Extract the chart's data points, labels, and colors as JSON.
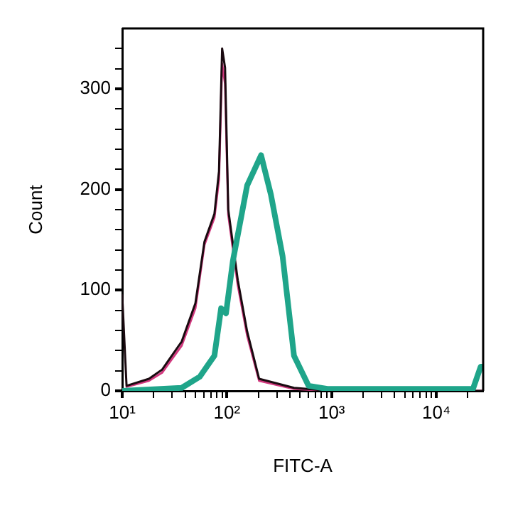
{
  "chart_data": {
    "type": "line",
    "xlabel": "FITC-A",
    "ylabel": "Count",
    "log": "x",
    "grid": false,
    "legend": false,
    "marker": "none",
    "line_style": "solid",
    "xlim": [
      10,
      28000
    ],
    "ylim": [
      0,
      360
    ],
    "xticks": [
      {
        "value": 10,
        "label": "10¹"
      },
      {
        "value": 20,
        "label": null
      },
      {
        "value": 30,
        "label": null
      },
      {
        "value": 40,
        "label": null
      },
      {
        "value": 50,
        "label": null
      },
      {
        "value": 60,
        "label": null
      },
      {
        "value": 70,
        "label": null
      },
      {
        "value": 80,
        "label": null
      },
      {
        "value": 90,
        "label": null
      },
      {
        "value": 100,
        "label": "10²"
      },
      {
        "value": 200,
        "label": null
      },
      {
        "value": 300,
        "label": null
      },
      {
        "value": 400,
        "label": null
      },
      {
        "value": 500,
        "label": null
      },
      {
        "value": 600,
        "label": null
      },
      {
        "value": 700,
        "label": null
      },
      {
        "value": 800,
        "label": null
      },
      {
        "value": 900,
        "label": null
      },
      {
        "value": 1000,
        "label": "10³"
      },
      {
        "value": 2000,
        "label": null
      },
      {
        "value": 3000,
        "label": null
      },
      {
        "value": 4000,
        "label": null
      },
      {
        "value": 5000,
        "label": null
      },
      {
        "value": 6000,
        "label": null
      },
      {
        "value": 7000,
        "label": null
      },
      {
        "value": 8000,
        "label": null
      },
      {
        "value": 9000,
        "label": null
      },
      {
        "value": 10000,
        "label": "10⁴"
      },
      {
        "value": 20000,
        "label": null
      }
    ],
    "yticks": [
      0,
      {
        "value": 20,
        "label": null
      },
      {
        "value": 40,
        "label": null
      },
      {
        "value": 60,
        "label": null
      },
      {
        "value": 80,
        "label": null
      },
      100,
      {
        "value": 120,
        "label": null
      },
      {
        "value": 140,
        "label": null
      },
      {
        "value": 160,
        "label": null
      },
      {
        "value": 180,
        "label": null
      },
      200,
      {
        "value": 220,
        "label": null
      },
      {
        "value": 240,
        "label": null
      },
      {
        "value": 260,
        "label": null
      },
      {
        "value": 280,
        "label": null
      },
      300,
      {
        "value": 320,
        "label": null
      },
      {
        "value": 340,
        "label": null
      }
    ],
    "series": [
      {
        "color": "#d2387e",
        "x": [
          11,
          18,
          24,
          37,
          50,
          61,
          76,
          84,
          90,
          96,
          103,
          127,
          156,
          203,
          437,
          1000,
          28000
        ],
        "values": [
          4,
          10,
          18,
          45,
          82,
          145,
          172,
          210,
          325,
          305,
          175,
          105,
          55,
          10,
          2,
          0,
          0
        ]
      },
      {
        "color": "#1a0a10",
        "x": [
          10,
          11,
          18,
          24,
          37,
          50,
          61,
          76,
          84,
          90,
          96,
          103,
          127,
          156,
          203,
          437,
          1000,
          28000
        ],
        "values": [
          95,
          5,
          12,
          21,
          49,
          87,
          148,
          176,
          218,
          340,
          321,
          180,
          110,
          59,
          12,
          3,
          0,
          0
        ]
      },
      {
        "color": "#1fa58a",
        "x": [
          10,
          37,
          55,
          76,
          88,
          98,
          114,
          156,
          212,
          263,
          340,
          437,
          603,
          910,
          7240,
          22400,
          26500,
          28000
        ],
        "values": [
          0,
          3,
          14,
          35,
          82,
          77,
          129,
          204,
          234,
          195,
          134,
          35,
          5,
          2,
          2,
          2,
          24,
          24
        ]
      }
    ]
  }
}
